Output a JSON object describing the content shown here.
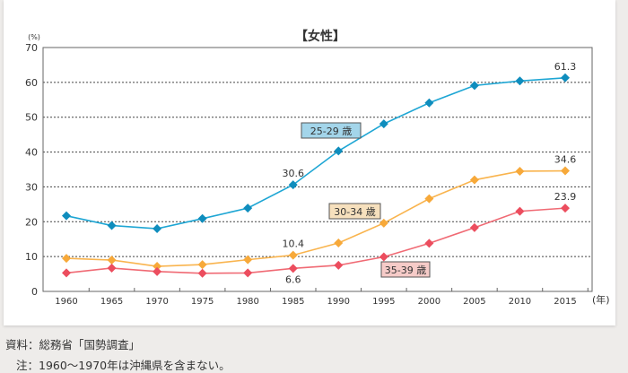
{
  "chart_data": {
    "type": "line",
    "title": "【女性】",
    "ylabel": "(%)",
    "xlabel": "(年)",
    "ylim": [
      0,
      70
    ],
    "yticks": [
      0,
      10,
      20,
      30,
      40,
      50,
      60,
      70
    ],
    "grid": true,
    "x": [
      1960,
      1965,
      1970,
      1975,
      1980,
      1985,
      1990,
      1995,
      2000,
      2005,
      2010,
      2015
    ],
    "series": [
      {
        "name": "25-29 歳",
        "color": "#1ea6d4",
        "marker_color": "#0f8dbd",
        "label_bg": "#a3d5ea",
        "values": [
          21.7,
          18.9,
          18.0,
          20.9,
          23.9,
          30.6,
          40.3,
          48.1,
          54.1,
          59.1,
          60.4,
          61.3
        ],
        "data_labels": {
          "1985": "30.6",
          "2015": "61.3"
        }
      },
      {
        "name": "30-34 歳",
        "color": "#f9b44e",
        "marker_color": "#f7a93a",
        "label_bg": "#f6e0bd",
        "values": [
          9.5,
          9.0,
          7.2,
          7.7,
          9.1,
          10.4,
          13.9,
          19.6,
          26.6,
          32.0,
          34.5,
          34.6
        ],
        "data_labels": {
          "1985": "10.4",
          "2015": "34.6"
        }
      },
      {
        "name": "35-39 歳",
        "color": "#f06a74",
        "marker_color": "#ec4d5e",
        "label_bg": "#f6cbc8",
        "values": [
          5.3,
          6.7,
          5.7,
          5.2,
          5.3,
          6.6,
          7.5,
          9.9,
          13.8,
          18.3,
          23.0,
          23.9
        ],
        "data_labels": {
          "1985": "6.6",
          "2015": "23.9"
        }
      }
    ]
  },
  "footer": {
    "source": "資料：総務省「国勢調査」",
    "note": "注：1960〜1970年は沖縄県を含まない。"
  }
}
